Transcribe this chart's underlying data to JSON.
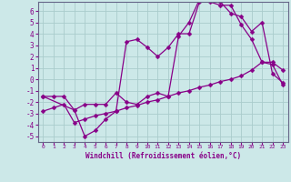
{
  "xlabel": "Windchill (Refroidissement éolien,°C)",
  "xlim": [
    -0.5,
    23.5
  ],
  "ylim": [
    -5.5,
    6.8
  ],
  "yticks": [
    -5,
    -4,
    -3,
    -2,
    -1,
    0,
    1,
    2,
    3,
    4,
    5,
    6
  ],
  "xticks": [
    0,
    1,
    2,
    3,
    4,
    5,
    6,
    7,
    8,
    9,
    10,
    11,
    12,
    13,
    14,
    15,
    16,
    17,
    18,
    19,
    20,
    21,
    22,
    23
  ],
  "background_color": "#cce8e8",
  "grid_color": "#aacccc",
  "line_color": "#880088",
  "line1_x": [
    0,
    1,
    2,
    3,
    4,
    5,
    6,
    7,
    8,
    9,
    10,
    11,
    12,
    13,
    14,
    15,
    16,
    17,
    18,
    19,
    20,
    21,
    22,
    23
  ],
  "line1_y": [
    -1.5,
    -1.5,
    -1.5,
    -2.7,
    -2.2,
    -2.2,
    -2.2,
    -1.2,
    -2.0,
    -2.2,
    -1.5,
    -1.2,
    -1.5,
    3.8,
    5.0,
    7.0,
    7.0,
    6.8,
    5.8,
    5.5,
    4.2,
    5.0,
    0.5,
    -0.3
  ],
  "line2_x": [
    0,
    3,
    4,
    5,
    6,
    7,
    8,
    9,
    10,
    11,
    12,
    13,
    14,
    15,
    16,
    17,
    18,
    19,
    20,
    21,
    22,
    23
  ],
  "line2_y": [
    -1.5,
    -2.7,
    -5.0,
    -4.5,
    -3.5,
    -2.8,
    3.3,
    3.5,
    2.8,
    2.0,
    2.8,
    4.0,
    4.0,
    6.8,
    6.8,
    6.5,
    6.5,
    4.8,
    3.5,
    1.5,
    1.5,
    0.8
  ],
  "line3_x": [
    0,
    1,
    2,
    3,
    4,
    5,
    6,
    7,
    8,
    9,
    10,
    11,
    12,
    13,
    14,
    15,
    16,
    17,
    18,
    19,
    20,
    21,
    22,
    23
  ],
  "line3_y": [
    -2.8,
    -2.5,
    -2.2,
    -3.8,
    -3.5,
    -3.2,
    -3.0,
    -2.8,
    -2.5,
    -2.3,
    -2.0,
    -1.8,
    -1.5,
    -1.2,
    -1.0,
    -0.7,
    -0.5,
    -0.2,
    0.0,
    0.3,
    0.8,
    1.5,
    1.3,
    -0.5
  ]
}
